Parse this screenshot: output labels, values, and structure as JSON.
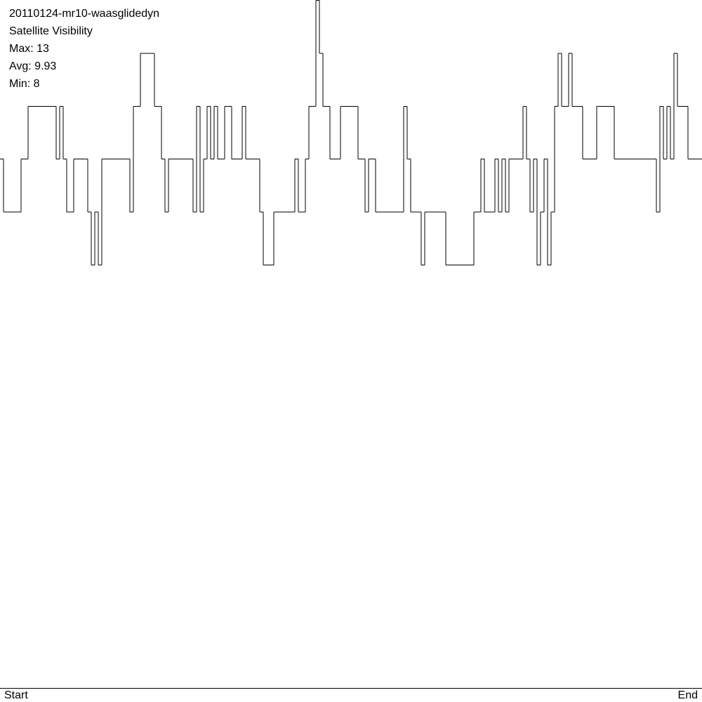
{
  "chart_data": {
    "type": "step",
    "title": "20110124-mr10-waasglidedyn",
    "subtitle": "Satellite Visibility",
    "stats": [
      "Max: 13",
      "Avg: 9.93",
      "Min: 8"
    ],
    "x_labels": [
      "Start",
      "End"
    ],
    "color": "#000000",
    "ylim": [
      0,
      13
    ],
    "values": [
      10,
      9,
      9,
      9,
      9,
      9,
      10,
      10,
      11,
      11,
      11,
      11,
      11,
      11,
      11,
      11,
      10,
      11,
      10,
      9,
      9,
      10,
      10,
      10,
      10,
      9,
      8,
      9,
      8,
      10,
      10,
      10,
      10,
      10,
      10,
      10,
      10,
      9,
      11,
      11,
      12,
      12,
      12,
      12,
      11,
      11,
      10,
      9,
      10,
      10,
      10,
      10,
      10,
      10,
      10,
      9,
      11,
      9,
      10,
      11,
      10,
      11,
      10,
      10,
      11,
      11,
      10,
      10,
      10,
      11,
      10,
      10,
      10,
      10,
      9,
      8,
      8,
      8,
      9,
      9,
      9,
      9,
      9,
      9,
      10,
      9,
      9,
      10,
      11,
      11,
      13,
      12,
      11,
      11,
      10,
      10,
      10,
      11,
      11,
      11,
      11,
      11,
      10,
      10,
      9,
      10,
      10,
      9,
      9,
      9,
      9,
      9,
      9,
      9,
      9,
      11,
      10,
      9,
      9,
      9,
      8,
      9,
      9,
      9,
      9,
      9,
      9,
      8,
      8,
      8,
      8,
      8,
      8,
      8,
      8,
      9,
      9,
      10,
      9,
      9,
      9,
      10,
      9,
      10,
      9,
      10,
      10,
      10,
      10,
      11,
      10,
      9,
      10,
      8,
      9,
      10,
      8,
      9,
      11,
      12,
      11,
      11,
      12,
      11,
      11,
      11,
      10,
      10,
      10,
      10,
      11,
      11,
      11,
      11,
      11,
      10,
      10,
      10,
      10,
      10,
      10,
      10,
      10,
      10,
      10,
      10,
      10,
      9,
      11,
      10,
      11,
      10,
      12,
      11,
      11,
      11,
      10,
      10,
      10,
      10
    ]
  }
}
